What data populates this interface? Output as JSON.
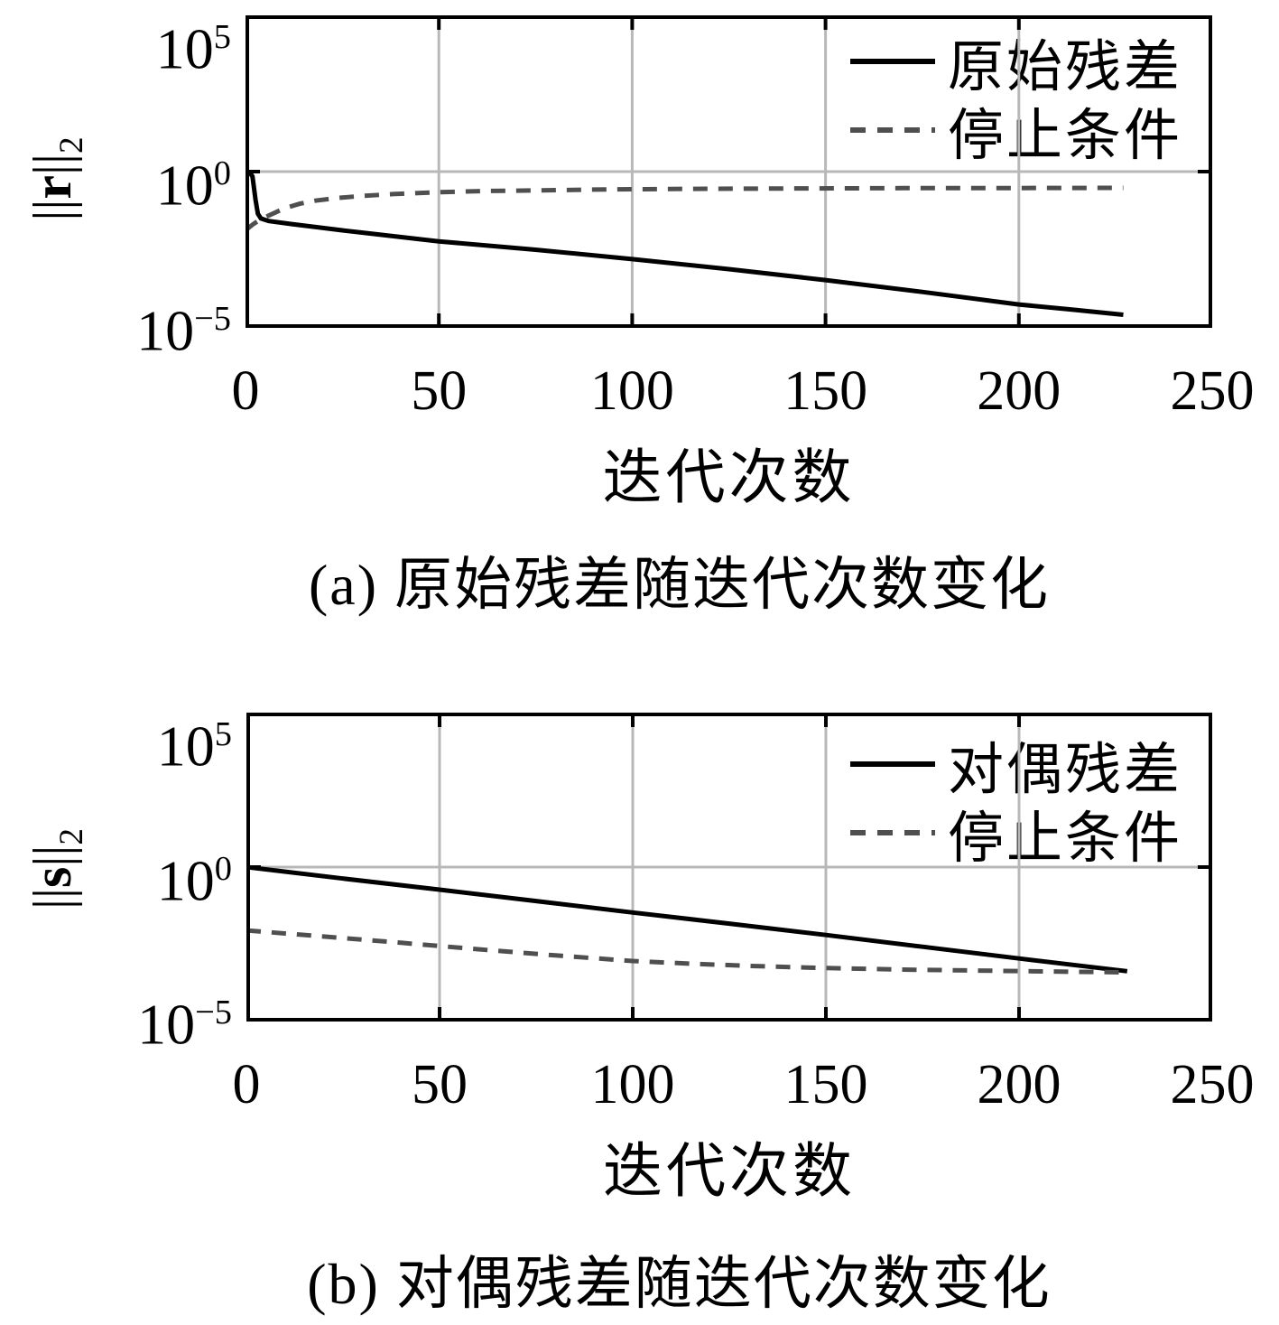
{
  "figure": {
    "background": "#ffffff",
    "colors": {
      "axis": "#000000",
      "grid": "#b8b8b8",
      "solid_series": "#000000",
      "dashed_series": "#4f4f4f"
    }
  },
  "chart_data": [
    {
      "type": "line",
      "id": "a",
      "caption": "(a) 原始残差随迭代次数变化",
      "xlabel": "迭代次数",
      "ylabel": {
        "bars_open": "||",
        "letter": "r",
        "bars_close": "||",
        "sub": "2"
      },
      "yscale": "log",
      "xlim": [
        0,
        250
      ],
      "ylim_exponents": [
        -5,
        5
      ],
      "x_ticks": [
        0,
        50,
        100,
        150,
        200,
        250
      ],
      "y_ticks": [
        {
          "base": "10",
          "exp_label": "5",
          "exp": 5
        },
        {
          "base": "10",
          "exp_label": "0",
          "exp": 0
        },
        {
          "base": "10",
          "exp_label": "−5",
          "exp": -5
        }
      ],
      "grid_x": [
        50,
        100,
        150,
        200
      ],
      "grid_y_exponents": [
        0
      ],
      "legend": {
        "position": "top-right",
        "entries": [
          "原始残差",
          "停止条件"
        ]
      },
      "series": [
        {
          "name": "原始残差",
          "style": "solid",
          "color": "#000000",
          "points_x_log10y": [
            [
              0,
              0
            ],
            [
              1,
              -0.02
            ],
            [
              1.8,
              -0.15
            ],
            [
              2.6,
              -0.9
            ],
            [
              3.2,
              -1.35
            ],
            [
              4,
              -1.5
            ],
            [
              6,
              -1.58
            ],
            [
              12,
              -1.68
            ],
            [
              25,
              -1.88
            ],
            [
              50,
              -2.23
            ],
            [
              75,
              -2.5
            ],
            [
              100,
              -2.8
            ],
            [
              125,
              -3.12
            ],
            [
              150,
              -3.47
            ],
            [
              175,
              -3.85
            ],
            [
              200,
              -4.25
            ],
            [
              214,
              -4.42
            ],
            [
              227,
              -4.58
            ]
          ]
        },
        {
          "name": "停止条件",
          "style": "dashed",
          "color": "#4f4f4f",
          "points_x_log10y": [
            [
              0,
              -1.88
            ],
            [
              2,
              -1.68
            ],
            [
              4,
              -1.52
            ],
            [
              7,
              -1.35
            ],
            [
              10,
              -1.18
            ],
            [
              14,
              -1.03
            ],
            [
              18,
              -0.93
            ],
            [
              24,
              -0.84
            ],
            [
              30,
              -0.78
            ],
            [
              38,
              -0.72
            ],
            [
              50,
              -0.66
            ],
            [
              62,
              -0.62
            ],
            [
              75,
              -0.6
            ],
            [
              90,
              -0.575
            ],
            [
              110,
              -0.555
            ],
            [
              140,
              -0.54
            ],
            [
              170,
              -0.53
            ],
            [
              200,
              -0.525
            ],
            [
              227,
              -0.52
            ]
          ]
        }
      ]
    },
    {
      "type": "line",
      "id": "b",
      "caption": "(b) 对偶残差随迭代次数变化",
      "xlabel": "迭代次数",
      "ylabel": {
        "bars_open": "||",
        "letter": "s",
        "bars_close": "||",
        "sub": "2"
      },
      "yscale": "log",
      "xlim": [
        0,
        250
      ],
      "ylim_exponents": [
        -5,
        5
      ],
      "x_ticks": [
        0,
        50,
        100,
        150,
        200,
        250
      ],
      "y_ticks": [
        {
          "base": "10",
          "exp_label": "5",
          "exp": 5
        },
        {
          "base": "10",
          "exp_label": "0",
          "exp": 0
        },
        {
          "base": "10",
          "exp_label": "−5",
          "exp": -5
        }
      ],
      "grid_x": [
        50,
        100,
        150,
        200
      ],
      "grid_y_exponents": [
        0
      ],
      "legend": {
        "position": "top-right",
        "entries": [
          "对偶残差",
          "停止条件"
        ]
      },
      "series": [
        {
          "name": "对偶残差",
          "style": "solid",
          "color": "#000000",
          "points_x_log10y": [
            [
              0,
              0
            ],
            [
              25,
              -0.37
            ],
            [
              50,
              -0.73
            ],
            [
              75,
              -1.1
            ],
            [
              100,
              -1.47
            ],
            [
              125,
              -1.83
            ],
            [
              150,
              -2.2
            ],
            [
              175,
              -2.58
            ],
            [
              200,
              -2.96
            ],
            [
              215,
              -3.18
            ],
            [
              228,
              -3.37
            ]
          ]
        },
        {
          "name": "停止条件",
          "style": "dashed",
          "color": "#4f4f4f",
          "points_x_log10y": [
            [
              0,
              -2.05
            ],
            [
              20,
              -2.25
            ],
            [
              40,
              -2.45
            ],
            [
              60,
              -2.66
            ],
            [
              80,
              -2.86
            ],
            [
              100,
              -3.04
            ],
            [
              115,
              -3.13
            ],
            [
              130,
              -3.2
            ],
            [
              150,
              -3.27
            ],
            [
              170,
              -3.32
            ],
            [
              195,
              -3.36
            ],
            [
              228,
              -3.41
            ]
          ]
        }
      ]
    }
  ]
}
